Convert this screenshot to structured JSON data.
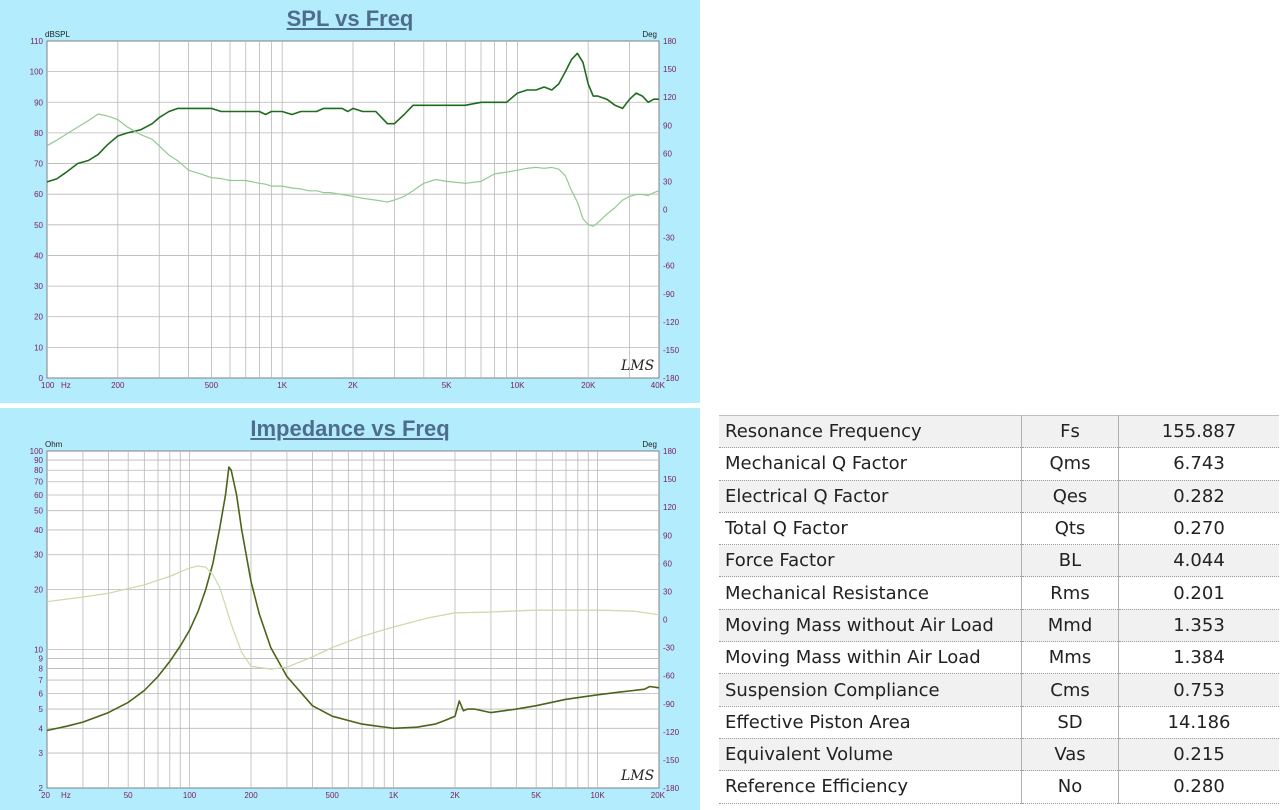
{
  "chart_data": [
    {
      "type": "line",
      "title": "SPL vs Freq",
      "xscale": "log",
      "xlim": [
        100,
        40000
      ],
      "ylim": [
        0,
        110
      ],
      "y2lim": [
        -180,
        180
      ],
      "ylabel_unit": "dBSPL",
      "y2label_unit": "Deg",
      "xunit": "Hz",
      "logo": "LMS",
      "grid": true,
      "x_ticks": [
        {
          "label": "100",
          "value": 100
        },
        {
          "label": "200",
          "value": 200
        },
        {
          "label": "500",
          "value": 500
        },
        {
          "label": "1K",
          "value": 1000
        },
        {
          "label": "2K",
          "value": 2000
        },
        {
          "label": "5K",
          "value": 5000
        },
        {
          "label": "10K",
          "value": 10000
        },
        {
          "label": "20K",
          "value": 20000
        },
        {
          "label": "40K",
          "value": 40000
        }
      ],
      "y_ticks": [
        "0",
        "10",
        "20",
        "30",
        "40",
        "50",
        "60",
        "70",
        "80",
        "90",
        "100",
        "110"
      ],
      "y2_ticks": [
        "-180",
        "-150",
        "-120",
        "-90",
        "-60",
        "-30",
        "0",
        "30",
        "60",
        "90",
        "120",
        "150",
        "180"
      ],
      "series": [
        {
          "axis": "left",
          "color": "#1f6b1f",
          "width": 1.6,
          "x": [
            100,
            110,
            120,
            135,
            150,
            165,
            180,
            200,
            220,
            250,
            280,
            300,
            330,
            360,
            400,
            450,
            500,
            550,
            600,
            700,
            800,
            850,
            900,
            1000,
            1100,
            1200,
            1300,
            1400,
            1500,
            1600,
            1800,
            1900,
            2000,
            2200,
            2500,
            2800,
            3000,
            3300,
            3600,
            4000,
            4500,
            5000,
            5500,
            6000,
            7000,
            8000,
            9000,
            10000,
            11000,
            12000,
            13000,
            14000,
            15000,
            16000,
            17000,
            18000,
            19000,
            20000,
            21000,
            22000,
            24000,
            26000,
            28000,
            30000,
            32000,
            34000,
            36000,
            38000,
            40000
          ],
          "y": [
            64,
            65,
            67,
            70,
            71,
            73,
            76,
            79,
            80,
            81,
            83,
            85,
            87,
            88,
            88,
            88,
            88,
            87,
            87,
            87,
            87,
            86,
            87,
            87,
            86,
            87,
            87,
            87,
            88,
            88,
            88,
            87,
            88,
            87,
            87,
            83,
            83,
            86,
            89,
            89,
            89,
            89,
            89,
            89,
            90,
            90,
            90,
            93,
            94,
            94,
            95,
            94,
            96,
            100,
            104,
            106,
            103,
            96,
            92,
            92,
            91,
            89,
            88,
            91,
            93,
            92,
            90,
            91,
            91
          ]
        },
        {
          "axis": "right",
          "color": "#93c993",
          "width": 1.2,
          "x": [
            100,
            110,
            120,
            135,
            150,
            165,
            180,
            200,
            220,
            250,
            280,
            300,
            330,
            360,
            400,
            450,
            500,
            550,
            600,
            700,
            800,
            850,
            900,
            1000,
            1100,
            1200,
            1300,
            1400,
            1500,
            1600,
            1800,
            1900,
            2000,
            2200,
            2500,
            2800,
            3000,
            3300,
            3600,
            4000,
            4500,
            5000,
            5500,
            6000,
            7000,
            8000,
            9000,
            10000,
            11000,
            12000,
            13000,
            14000,
            15000,
            16000,
            17000,
            18000,
            19000,
            20000,
            21000,
            22000,
            24000,
            26000,
            28000,
            30000,
            32000,
            34000,
            36000,
            38000,
            40000
          ],
          "y": [
            68,
            74,
            80,
            88,
            95,
            102,
            100,
            96,
            88,
            80,
            75,
            68,
            58,
            52,
            42,
            38,
            34,
            33,
            31,
            31,
            28,
            27,
            25,
            25,
            23,
            22,
            20,
            20,
            18,
            18,
            16,
            15,
            14,
            12,
            10,
            8,
            10,
            14,
            20,
            28,
            32,
            30,
            29,
            28,
            30,
            38,
            40,
            42,
            44,
            45,
            44,
            45,
            43,
            36,
            20,
            8,
            -10,
            -16,
            -18,
            -14,
            -5,
            2,
            10,
            14,
            16,
            16,
            15,
            18,
            20
          ]
        }
      ]
    },
    {
      "type": "line",
      "title": "Impedance vs Freq",
      "xscale": "log",
      "yscale": "log",
      "xlim": [
        20,
        20000
      ],
      "ylim": [
        2,
        100
      ],
      "y2lim": [
        -180,
        180
      ],
      "ylabel_unit": "Ohm",
      "y2label_unit": "Deg",
      "xunit": "Hz",
      "logo": "LMS",
      "grid": true,
      "x_ticks": [
        {
          "label": "20",
          "value": 20
        },
        {
          "label": "50",
          "value": 50
        },
        {
          "label": "100",
          "value": 100
        },
        {
          "label": "200",
          "value": 200
        },
        {
          "label": "500",
          "value": 500
        },
        {
          "label": "1K",
          "value": 1000
        },
        {
          "label": "2K",
          "value": 2000
        },
        {
          "label": "5K",
          "value": 5000
        },
        {
          "label": "10K",
          "value": 10000
        },
        {
          "label": "20K",
          "value": 20000
        }
      ],
      "y_ticks": [
        {
          "label": "2",
          "value": 2
        },
        {
          "label": "3",
          "value": 3
        },
        {
          "label": "4",
          "value": 4
        },
        {
          "label": "5",
          "value": 5
        },
        {
          "label": "6",
          "value": 6
        },
        {
          "label": "7",
          "value": 7
        },
        {
          "label": "8",
          "value": 8
        },
        {
          "label": "9",
          "value": 9
        },
        {
          "label": "10",
          "value": 10
        },
        {
          "label": "20",
          "value": 20
        },
        {
          "label": "30",
          "value": 30
        },
        {
          "label": "40",
          "value": 40
        },
        {
          "label": "50",
          "value": 50
        },
        {
          "label": "60",
          "value": 60
        },
        {
          "label": "70",
          "value": 70
        },
        {
          "label": "80",
          "value": 80
        },
        {
          "label": "90",
          "value": 90
        },
        {
          "label": "100",
          "value": 100
        }
      ],
      "y2_ticks": [
        "-180",
        "-150",
        "-120",
        "-90",
        "-60",
        "-30",
        "0",
        "30",
        "60",
        "90",
        "120",
        "150",
        "180"
      ],
      "series": [
        {
          "axis": "left",
          "color": "#4a6418",
          "width": 1.6,
          "x": [
            20,
            25,
            30,
            40,
            50,
            60,
            70,
            80,
            90,
            100,
            110,
            120,
            130,
            140,
            150,
            155.887,
            160,
            170,
            180,
            200,
            220,
            250,
            300,
            400,
            500,
            700,
            1000,
            1300,
            1600,
            1800,
            2000,
            2100,
            2200,
            2300,
            2500,
            3000,
            4000,
            5000,
            7000,
            10000,
            13000,
            15000,
            17000,
            18000,
            20000
          ],
          "y": [
            3.9,
            4.1,
            4.3,
            4.8,
            5.4,
            6.2,
            7.3,
            8.7,
            10.4,
            12.5,
            15.5,
            20,
            27,
            40,
            60,
            83,
            80,
            60,
            40,
            22,
            15,
            10.2,
            7.3,
            5.2,
            4.6,
            4.2,
            4.0,
            4.05,
            4.2,
            4.4,
            4.6,
            5.5,
            4.9,
            5.0,
            5.0,
            4.8,
            5.0,
            5.2,
            5.6,
            5.9,
            6.1,
            6.2,
            6.3,
            6.5,
            6.4
          ]
        },
        {
          "axis": "right",
          "color": "#c9d9a8",
          "width": 1.2,
          "x": [
            20,
            30,
            40,
            50,
            60,
            70,
            80,
            90,
            100,
            110,
            120,
            130,
            140,
            150,
            160,
            180,
            200,
            250,
            300,
            400,
            500,
            700,
            1000,
            1500,
            2000,
            3000,
            5000,
            7000,
            10000,
            15000,
            20000
          ],
          "y": [
            19,
            24,
            28,
            33,
            37,
            42,
            46,
            51,
            55,
            57,
            56,
            48,
            35,
            15,
            -5,
            -35,
            -50,
            -53,
            -51,
            -40,
            -30,
            -18,
            -8,
            2,
            7,
            8,
            10,
            10,
            10,
            9,
            5
          ]
        }
      ]
    }
  ],
  "table": {
    "rows": [
      {
        "name": "Resonance Frequency",
        "symbol": "Fs",
        "value": "155.887"
      },
      {
        "name": "Mechanical Q Factor",
        "symbol": "Qms",
        "value": "6.743"
      },
      {
        "name": "Electrical Q Factor",
        "symbol": "Qes",
        "value": "0.282"
      },
      {
        "name": "Total Q Factor",
        "symbol": "Qts",
        "value": "0.270"
      },
      {
        "name": "Force Factor",
        "symbol": "BL",
        "value": "4.044"
      },
      {
        "name": "Mechanical Resistance",
        "symbol": "Rms",
        "value": "0.201"
      },
      {
        "name": "Moving Mass without Air Load",
        "symbol": "Mmd",
        "value": "1.353"
      },
      {
        "name": "Moving Mass within Air Load",
        "symbol": "Mms",
        "value": "1.384"
      },
      {
        "name": "Suspension Compliance",
        "symbol": "Cms",
        "value": "0.753"
      },
      {
        "name": "Effective Piston Area",
        "symbol": "SD",
        "value": "14.186"
      },
      {
        "name": "Equivalent Volume",
        "symbol": "Vas",
        "value": "0.215"
      },
      {
        "name": "Reference Efficiency",
        "symbol": "No",
        "value": "0.280"
      }
    ]
  }
}
